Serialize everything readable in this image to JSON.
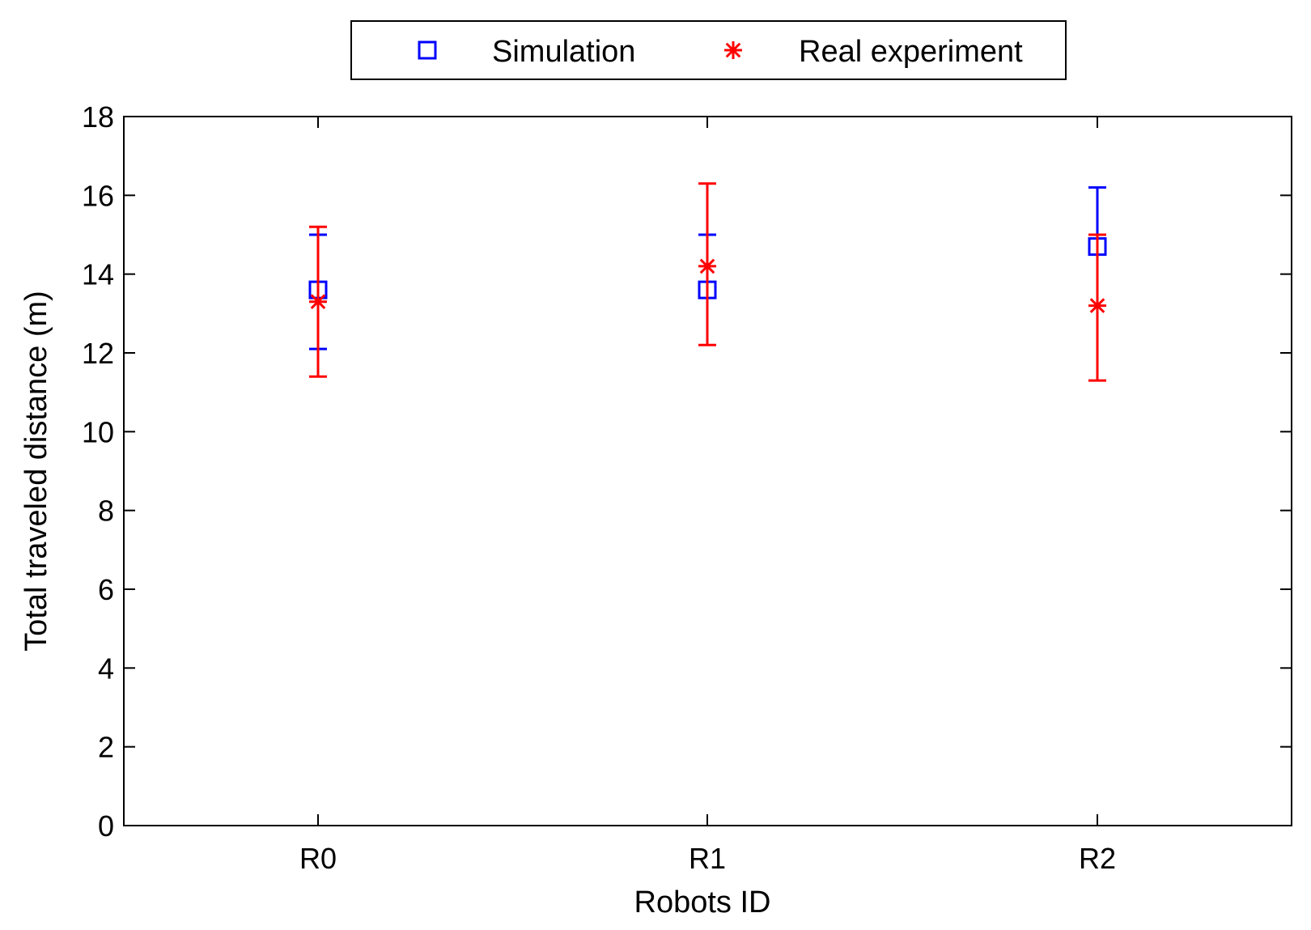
{
  "chart_data": {
    "type": "scatter",
    "title": "",
    "xlabel": "Robots ID",
    "ylabel": "Total traveled distance (m)",
    "categories": [
      "R0",
      "R1",
      "R2"
    ],
    "ylim": [
      0,
      18
    ],
    "yticks": [
      0,
      2,
      4,
      6,
      8,
      10,
      12,
      14,
      16,
      18
    ],
    "grid": false,
    "legend_position": "top-center outside",
    "series": [
      {
        "name": "Simulation",
        "marker": "square",
        "color": "#0000ff",
        "values": [
          13.6,
          13.6,
          14.7
        ],
        "error_low": [
          12.1,
          null,
          null
        ],
        "error_high": [
          15.0,
          15.0,
          16.2
        ]
      },
      {
        "name": "Real experiment",
        "marker": "asterisk",
        "color": "#ff0000",
        "values": [
          13.3,
          14.2,
          13.2
        ],
        "error_low": [
          11.4,
          12.2,
          11.3
        ],
        "error_high": [
          15.2,
          16.3,
          15.0
        ]
      }
    ]
  }
}
